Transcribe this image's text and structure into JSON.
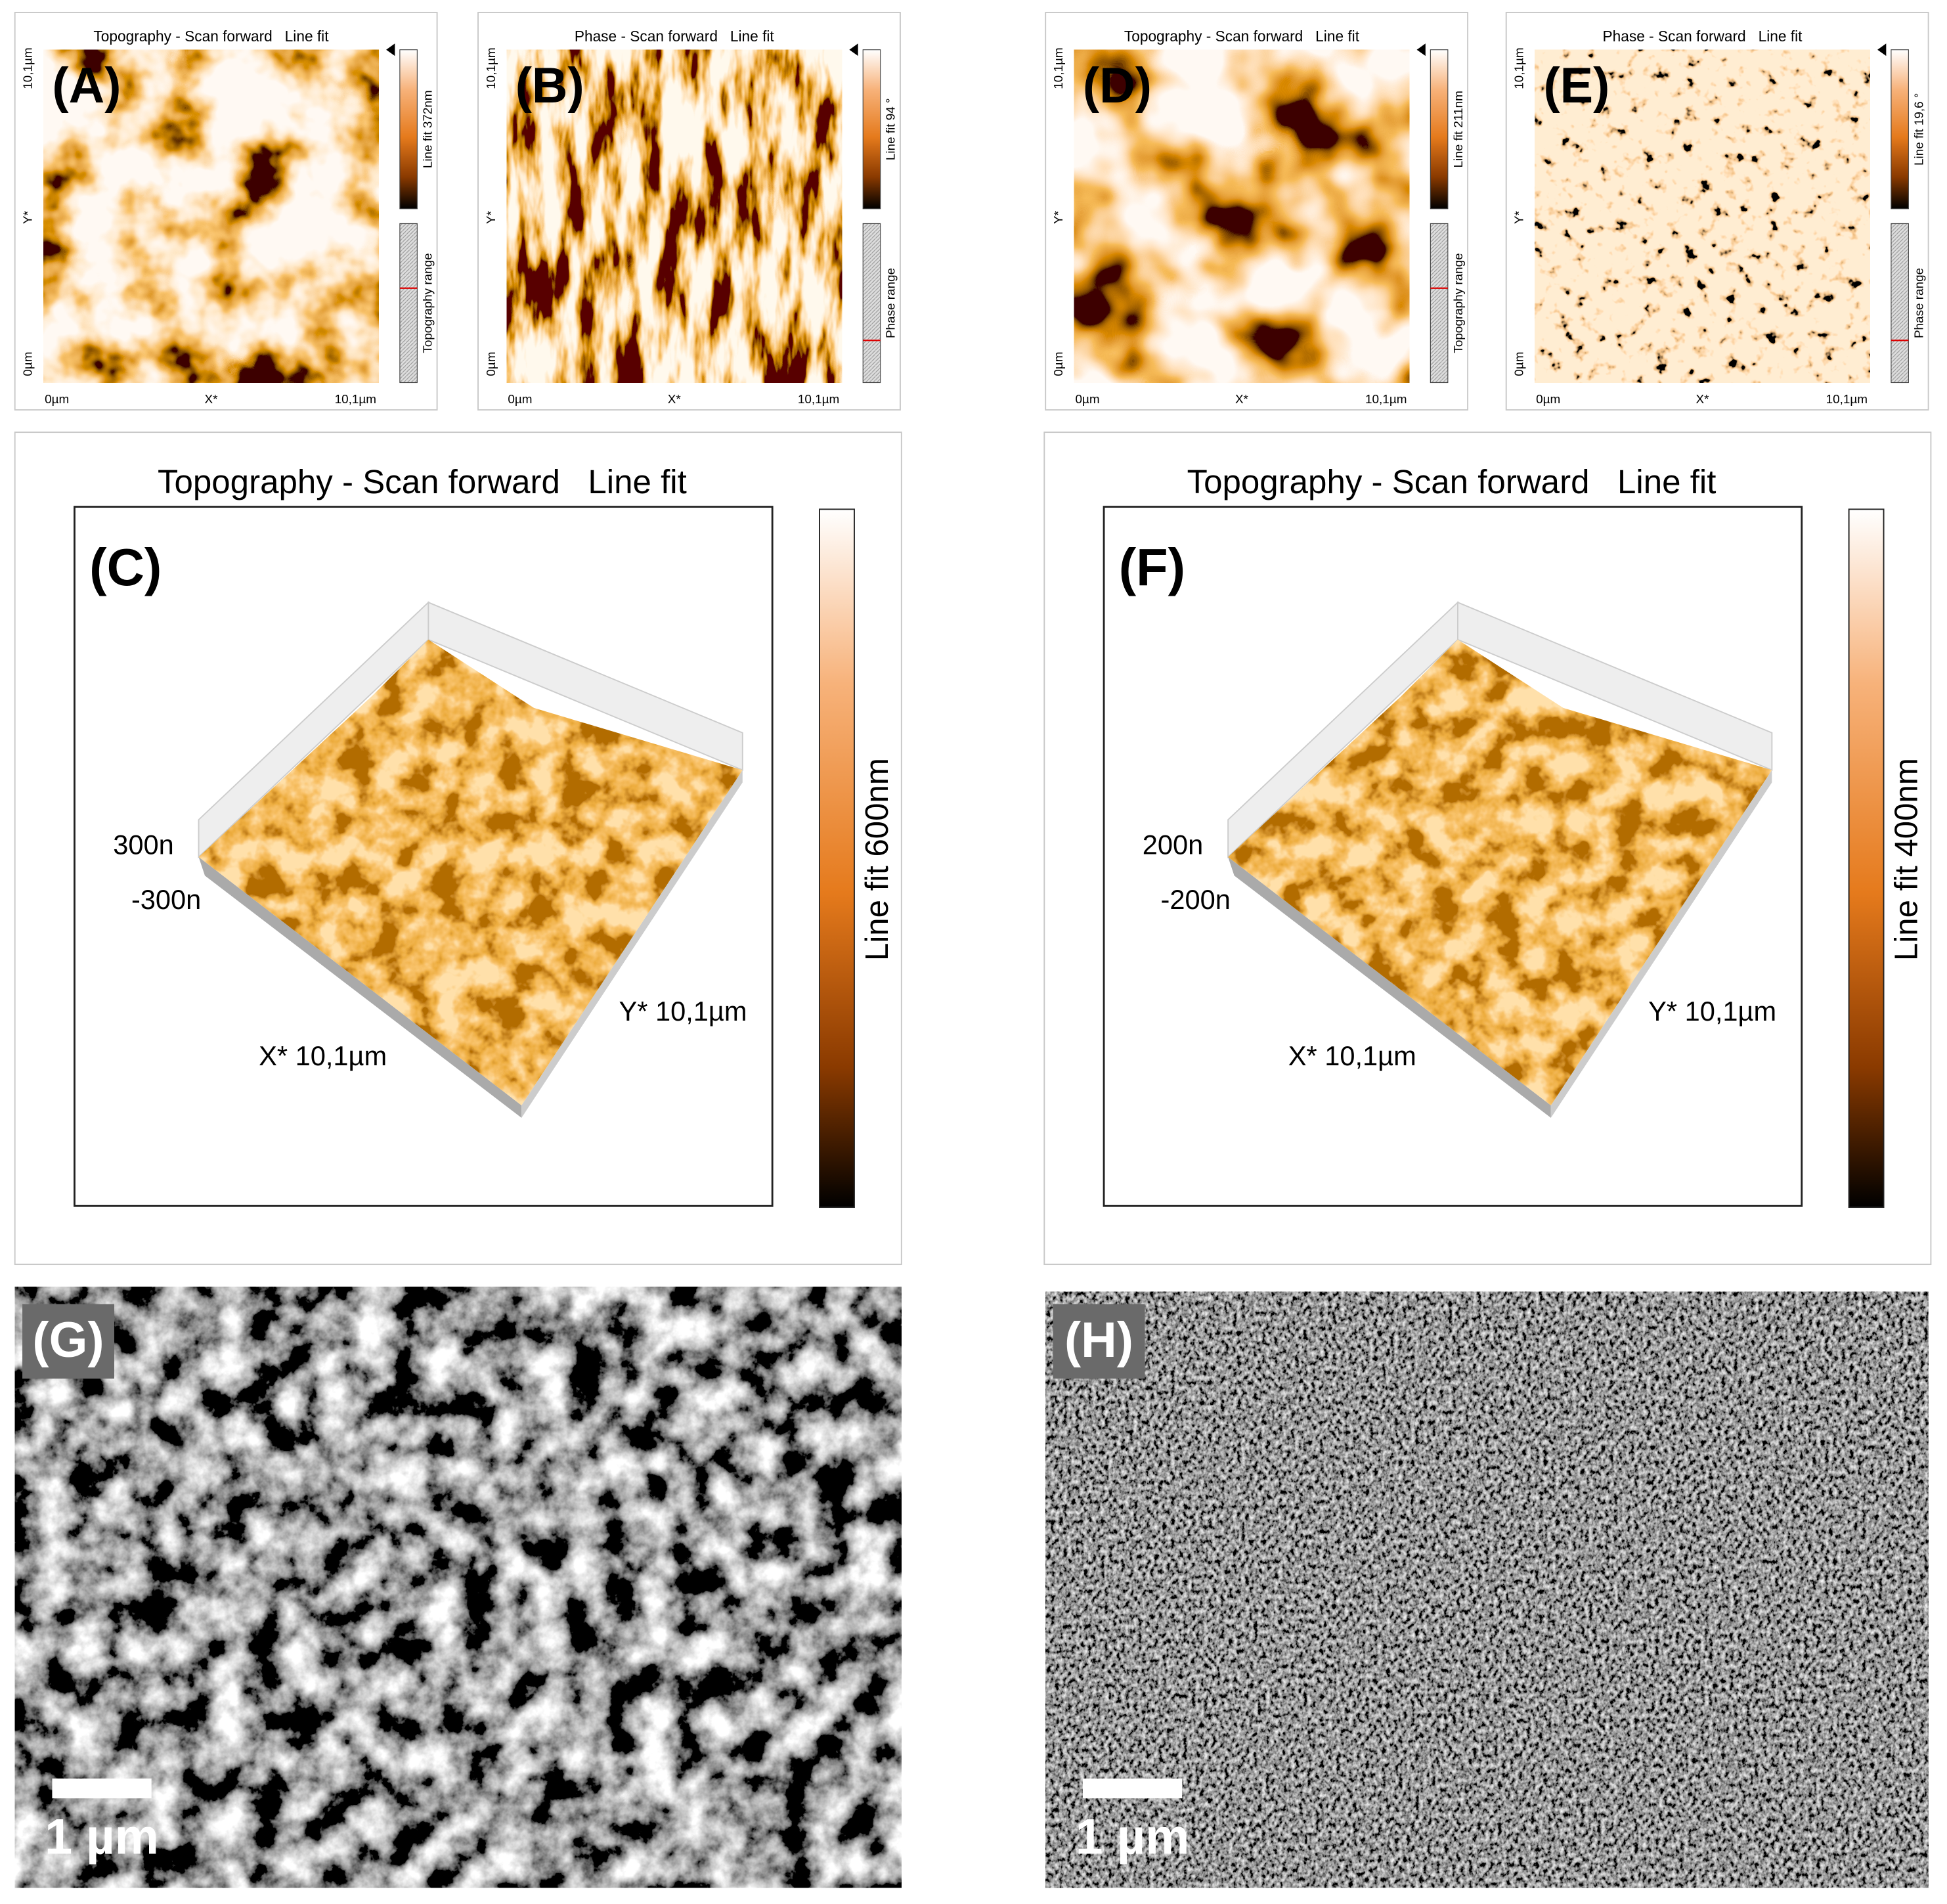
{
  "panels": [
    {
      "label": "(A)",
      "title": "Topography - Scan forward   Line fit",
      "y_axis": [
        "10,1µm",
        "Y*",
        "0µm"
      ],
      "x_axis": [
        "0µm",
        "X*",
        "10,1µm"
      ],
      "colorbar": "Line fit 372nm",
      "range": "Topography range"
    },
    {
      "label": "(B)",
      "title": "Phase - Scan forward   Line fit",
      "y_axis": [
        "10,1µm",
        "Y*",
        "0µm"
      ],
      "x_axis": [
        "0µm",
        "X*",
        "10,1µm"
      ],
      "colorbar": "Line fit 94 °",
      "range": "Phase range"
    },
    {
      "label": "(D)",
      "title": "Topography - Scan forward   Line fit",
      "y_axis": [
        "10,1µm",
        "Y*",
        "0µm"
      ],
      "x_axis": [
        "0µm",
        "X*",
        "10,1µm"
      ],
      "colorbar": "Line fit 211nm",
      "range": "Topography range"
    },
    {
      "label": "(E)",
      "title": "Phase - Scan forward   Line fit",
      "y_axis": [
        "10,1µm",
        "Y*",
        "0µm"
      ],
      "x_axis": [
        "0µm",
        "X*",
        "10,1µm"
      ],
      "colorbar": "Line fit 19,6 °",
      "range": "Phase range"
    }
  ],
  "panels_3d": [
    {
      "label": "(C)",
      "title": "Topography - Scan forward   Line fit",
      "z_labels": [
        "300n",
        "-300n"
      ],
      "x_label": "X* 10,1µm",
      "y_label": "Y* 10,1µm",
      "colorbar": "Line fit 600nm"
    },
    {
      "label": "(F)",
      "title": "Topography - Scan forward   Line fit",
      "z_labels": [
        "200n",
        "-200n"
      ],
      "x_label": "X* 10,1µm",
      "y_label": "Y* 10,1µm",
      "colorbar": "Line fit 400nm"
    }
  ],
  "sem": [
    {
      "label": "(G)",
      "scale": "1 µm"
    },
    {
      "label": "(H)",
      "scale": "1 µm"
    }
  ]
}
